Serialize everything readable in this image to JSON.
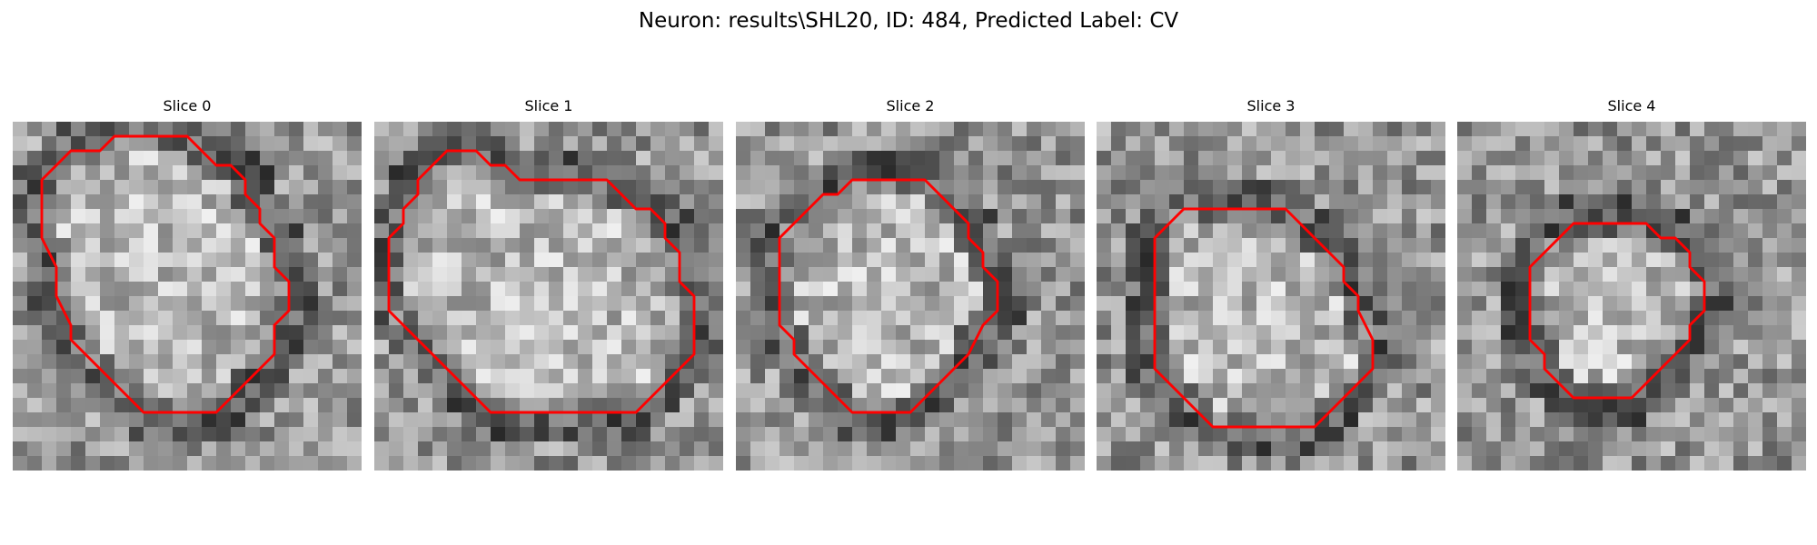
{
  "figure": {
    "title": "Neuron: results\\SHL20, ID: 484, Predicted Label: CV"
  },
  "panels": [
    {
      "title": "Slice 0",
      "image": "grayscale microscopy patch",
      "contour": [
        [
          7,
          1
        ],
        [
          12,
          1
        ],
        [
          13,
          2
        ],
        [
          14,
          3
        ],
        [
          15,
          3
        ],
        [
          16,
          4
        ],
        [
          16,
          5
        ],
        [
          17,
          6
        ],
        [
          17,
          7
        ],
        [
          18,
          8
        ],
        [
          18,
          9
        ],
        [
          18,
          10
        ],
        [
          19,
          11
        ],
        [
          19,
          13
        ],
        [
          18,
          14
        ],
        [
          18,
          16
        ],
        [
          17,
          17
        ],
        [
          16,
          18
        ],
        [
          15,
          19
        ],
        [
          14,
          20
        ],
        [
          10,
          20
        ],
        [
          9,
          20
        ],
        [
          8,
          19
        ],
        [
          7,
          18
        ],
        [
          6,
          17
        ],
        [
          5,
          16
        ],
        [
          4,
          15
        ],
        [
          4,
          14
        ],
        [
          3,
          12
        ],
        [
          3,
          11
        ],
        [
          3,
          10
        ],
        [
          2,
          8
        ],
        [
          2,
          7
        ],
        [
          2,
          6
        ],
        [
          2,
          5
        ],
        [
          2,
          4
        ],
        [
          3,
          3
        ],
        [
          4,
          2
        ],
        [
          5,
          2
        ],
        [
          6,
          2
        ]
      ]
    },
    {
      "title": "Slice 1",
      "image": "grayscale microscopy patch",
      "contour": [
        [
          5,
          2
        ],
        [
          7,
          2
        ],
        [
          8,
          3
        ],
        [
          9,
          3
        ],
        [
          10,
          4
        ],
        [
          12,
          4
        ],
        [
          13,
          4
        ],
        [
          14,
          4
        ],
        [
          15,
          4
        ],
        [
          16,
          4
        ],
        [
          17,
          5
        ],
        [
          18,
          6
        ],
        [
          19,
          6
        ],
        [
          20,
          7
        ],
        [
          20,
          8
        ],
        [
          21,
          9
        ],
        [
          21,
          10
        ],
        [
          21,
          11
        ],
        [
          22,
          12
        ],
        [
          22,
          13
        ],
        [
          22,
          14
        ],
        [
          22,
          15
        ],
        [
          22,
          16
        ],
        [
          21,
          17
        ],
        [
          20,
          18
        ],
        [
          19,
          19
        ],
        [
          18,
          20
        ],
        [
          17,
          20
        ],
        [
          16,
          20
        ],
        [
          15,
          20
        ],
        [
          14,
          20
        ],
        [
          13,
          20
        ],
        [
          12,
          20
        ],
        [
          11,
          20
        ],
        [
          10,
          20
        ],
        [
          9,
          20
        ],
        [
          8,
          20
        ],
        [
          7,
          19
        ],
        [
          6,
          18
        ],
        [
          5,
          17
        ],
        [
          4,
          16
        ],
        [
          3,
          15
        ],
        [
          2,
          14
        ],
        [
          1,
          13
        ],
        [
          1,
          12
        ],
        [
          1,
          11
        ],
        [
          1,
          10
        ],
        [
          1,
          9
        ],
        [
          1,
          8
        ],
        [
          2,
          7
        ],
        [
          2,
          6
        ],
        [
          3,
          5
        ],
        [
          3,
          4
        ],
        [
          4,
          3
        ]
      ]
    },
    {
      "title": "Slice 2",
      "image": "grayscale microscopy patch",
      "contour": [
        [
          8,
          4
        ],
        [
          10,
          4
        ],
        [
          13,
          4
        ],
        [
          14,
          5
        ],
        [
          15,
          6
        ],
        [
          16,
          7
        ],
        [
          16,
          8
        ],
        [
          17,
          9
        ],
        [
          17,
          10
        ],
        [
          18,
          11
        ],
        [
          18,
          13
        ],
        [
          17,
          14
        ],
        [
          16,
          16
        ],
        [
          15,
          17
        ],
        [
          14,
          18
        ],
        [
          13,
          19
        ],
        [
          12,
          20
        ],
        [
          8,
          20
        ],
        [
          7,
          19
        ],
        [
          6,
          18
        ],
        [
          5,
          17
        ],
        [
          4,
          16
        ],
        [
          4,
          15
        ],
        [
          3,
          14
        ],
        [
          3,
          13
        ],
        [
          3,
          12
        ],
        [
          3,
          10
        ],
        [
          3,
          9
        ],
        [
          3,
          8
        ],
        [
          4,
          7
        ],
        [
          5,
          6
        ],
        [
          6,
          5
        ],
        [
          7,
          5
        ]
      ]
    },
    {
      "title": "Slice 3",
      "image": "grayscale microscopy patch",
      "contour": [
        [
          8,
          6
        ],
        [
          13,
          6
        ],
        [
          14,
          7
        ],
        [
          15,
          8
        ],
        [
          16,
          9
        ],
        [
          17,
          10
        ],
        [
          17,
          11
        ],
        [
          18,
          12
        ],
        [
          18,
          13
        ],
        [
          19,
          15
        ],
        [
          19,
          16
        ],
        [
          19,
          17
        ],
        [
          18,
          18
        ],
        [
          17,
          19
        ],
        [
          16,
          20
        ],
        [
          15,
          21
        ],
        [
          10,
          21
        ],
        [
          9,
          21
        ],
        [
          8,
          21
        ],
        [
          7,
          20
        ],
        [
          6,
          19
        ],
        [
          5,
          18
        ],
        [
          4,
          17
        ],
        [
          4,
          16
        ],
        [
          4,
          15
        ],
        [
          4,
          14
        ],
        [
          4,
          13
        ],
        [
          4,
          12
        ],
        [
          4,
          11
        ],
        [
          4,
          10
        ],
        [
          4,
          9
        ],
        [
          4,
          8
        ],
        [
          5,
          7
        ],
        [
          6,
          6
        ],
        [
          7,
          6
        ]
      ]
    },
    {
      "title": "Slice 4",
      "image": "grayscale microscopy patch",
      "contour": [
        [
          8,
          7
        ],
        [
          13,
          7
        ],
        [
          14,
          8
        ],
        [
          15,
          8
        ],
        [
          16,
          9
        ],
        [
          16,
          10
        ],
        [
          17,
          11
        ],
        [
          17,
          12
        ],
        [
          17,
          13
        ],
        [
          16,
          14
        ],
        [
          16,
          15
        ],
        [
          15,
          16
        ],
        [
          14,
          17
        ],
        [
          13,
          18
        ],
        [
          12,
          19
        ],
        [
          11,
          19
        ],
        [
          9,
          19
        ],
        [
          8,
          19
        ],
        [
          7,
          18
        ],
        [
          6,
          17
        ],
        [
          6,
          16
        ],
        [
          5,
          15
        ],
        [
          5,
          14
        ],
        [
          5,
          13
        ],
        [
          5,
          12
        ],
        [
          5,
          11
        ],
        [
          5,
          10
        ],
        [
          6,
          9
        ],
        [
          7,
          8
        ]
      ]
    }
  ]
}
